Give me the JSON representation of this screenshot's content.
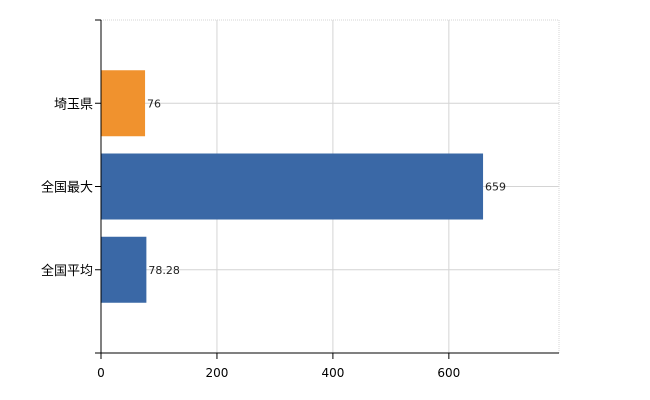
{
  "chart_data": {
    "type": "bar",
    "orientation": "horizontal",
    "categories": [
      "埼玉県",
      "全国最大",
      "全国平均"
    ],
    "values": [
      76,
      659,
      78.28
    ],
    "value_labels": [
      "76",
      "659",
      "78.28"
    ],
    "colors": [
      "#F0922E",
      "#3A68A6",
      "#3A68A6"
    ],
    "xlim": [
      0,
      790
    ],
    "xticks": [
      0,
      200,
      400,
      600
    ],
    "xtick_labels": [
      "0",
      "200",
      "400",
      "600"
    ],
    "grid": true,
    "title": "",
    "xlabel": "",
    "ylabel": ""
  }
}
